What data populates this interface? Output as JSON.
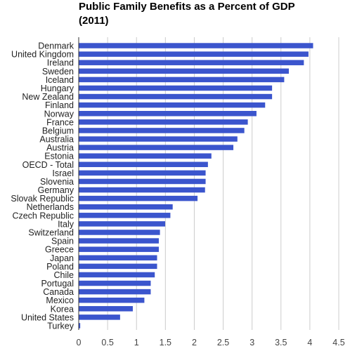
{
  "chart_data": {
    "type": "bar",
    "orientation": "horizontal",
    "title": "Public Family Benefits as a Percent of GDP\n(2011)",
    "xlabel": "",
    "ylabel": "",
    "xlim": [
      0,
      4.5
    ],
    "xticks": [
      "0",
      "0.5",
      "1",
      "1.5",
      "2",
      "2.5",
      "3",
      "3.5",
      "4",
      "4.5"
    ],
    "grid": true,
    "bar_color": "#3b55cd",
    "categories": [
      "Denmark",
      "United Kingdom",
      "Ireland",
      "Sweden",
      "Iceland",
      "Hungary",
      "New Zealand",
      "Finland",
      "Norway",
      "France",
      "Belgium",
      "Australia",
      "Austria",
      "Estonia",
      "OECD - Total",
      "Israel",
      "Slovenia",
      "Germany",
      "Slovak Republic",
      "Netherlands",
      "Czech Republic",
      "Italy",
      "Switzerland",
      "Spain",
      "Greece",
      "Japan",
      "Poland",
      "Chile",
      "Portugal",
      "Canada",
      "Mexico",
      "Korea",
      "United States",
      "Turkey"
    ],
    "values": [
      4.05,
      3.97,
      3.89,
      3.63,
      3.55,
      3.34,
      3.34,
      3.22,
      3.07,
      2.92,
      2.86,
      2.74,
      2.67,
      2.29,
      2.23,
      2.19,
      2.19,
      2.18,
      2.05,
      1.62,
      1.58,
      1.49,
      1.4,
      1.38,
      1.38,
      1.35,
      1.35,
      1.31,
      1.24,
      1.24,
      1.13,
      0.93,
      0.71,
      0.02
    ]
  }
}
